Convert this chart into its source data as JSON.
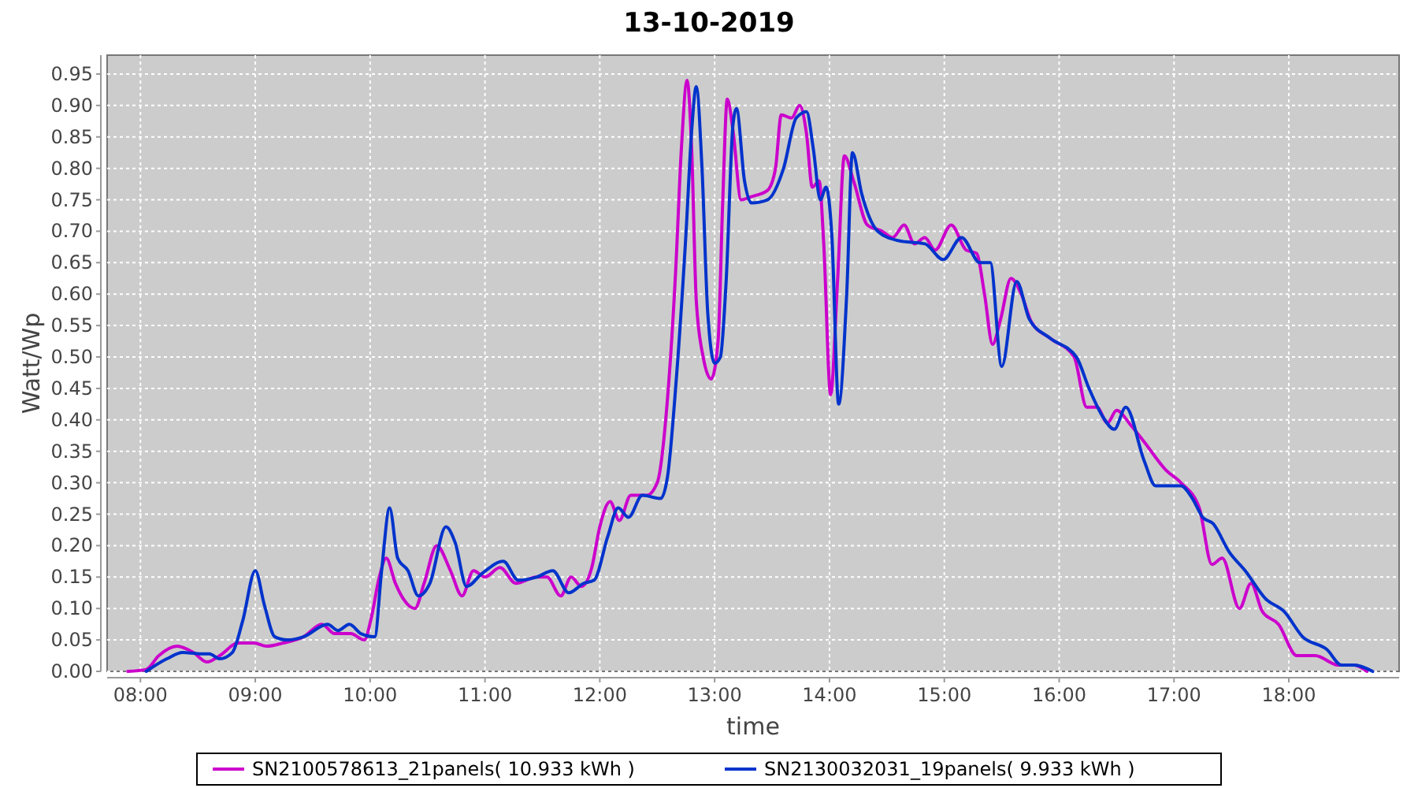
{
  "chart_data": {
    "type": "line",
    "title": "13-10-2019",
    "xlabel": "time",
    "ylabel": "Watt/Wp",
    "grid": true,
    "legend": "bottom",
    "line_style": "solid",
    "marker": "none",
    "xlim": [
      7.71,
      18.96
    ],
    "xticks": [
      {
        "value": 8,
        "label": "08:00"
      },
      {
        "value": 9,
        "label": "09:00"
      },
      {
        "value": 10,
        "label": "10:00"
      },
      {
        "value": 11,
        "label": "11:00"
      },
      {
        "value": 12,
        "label": "12:00"
      },
      {
        "value": 13,
        "label": "13:00"
      },
      {
        "value": 14,
        "label": "14:00"
      },
      {
        "value": 15,
        "label": "15:00"
      },
      {
        "value": 16,
        "label": "16:00"
      },
      {
        "value": 17,
        "label": "17:00"
      },
      {
        "value": 18,
        "label": "18:00"
      }
    ],
    "ylim": [
      0,
      0.98
    ],
    "yticks": [
      {
        "value": 0,
        "label": "0.00"
      },
      {
        "value": 0.05,
        "label": "0.05"
      },
      {
        "value": 0.1,
        "label": "0.10"
      },
      {
        "value": 0.15,
        "label": "0.15"
      },
      {
        "value": 0.2,
        "label": "0.20"
      },
      {
        "value": 0.25,
        "label": "0.25"
      },
      {
        "value": 0.3,
        "label": "0.30"
      },
      {
        "value": 0.35,
        "label": "0.35"
      },
      {
        "value": 0.4,
        "label": "0.40"
      },
      {
        "value": 0.45,
        "label": "0.45"
      },
      {
        "value": 0.5,
        "label": "0.50"
      },
      {
        "value": 0.55,
        "label": "0.55"
      },
      {
        "value": 0.6,
        "label": "0.60"
      },
      {
        "value": 0.65,
        "label": "0.65"
      },
      {
        "value": 0.7,
        "label": "0.70"
      },
      {
        "value": 0.75,
        "label": "0.75"
      },
      {
        "value": 0.8,
        "label": "0.80"
      },
      {
        "value": 0.85,
        "label": "0.85"
      },
      {
        "value": 0.9,
        "label": "0.90"
      },
      {
        "value": 0.95,
        "label": "0.95"
      }
    ],
    "series": [
      {
        "name": "SN2100578613_21panels( 10.933 kWh )",
        "color": "#cc00cc",
        "x": [
          7.89,
          8.05,
          8.16,
          8.32,
          8.46,
          8.58,
          8.69,
          8.85,
          8.99,
          9.1,
          9.24,
          9.42,
          9.58,
          9.69,
          9.83,
          9.95,
          10.01,
          10.08,
          10.14,
          10.22,
          10.29,
          10.39,
          10.47,
          10.58,
          10.7,
          10.8,
          10.9,
          11.0,
          11.13,
          11.27,
          11.45,
          11.54,
          11.66,
          11.75,
          11.84,
          11.93,
          12.0,
          12.09,
          12.17,
          12.27,
          12.41,
          12.5,
          12.59,
          12.66,
          12.71,
          12.76,
          12.8,
          12.84,
          12.9,
          12.97,
          13.03,
          13.07,
          13.11,
          13.16,
          13.23,
          13.32,
          13.46,
          13.53,
          13.58,
          13.67,
          13.74,
          13.8,
          13.85,
          13.91,
          13.95,
          14.01,
          14.07,
          14.13,
          14.21,
          14.33,
          14.46,
          14.55,
          14.65,
          14.74,
          14.83,
          14.92,
          15.06,
          15.19,
          15.28,
          15.35,
          15.42,
          15.49,
          15.58,
          15.67,
          15.76,
          15.92,
          16.13,
          16.24,
          16.33,
          16.42,
          16.5,
          16.63,
          16.74,
          16.93,
          17.06,
          17.22,
          17.33,
          17.42,
          17.57,
          17.67,
          17.77,
          17.91,
          18.07,
          18.23,
          18.43,
          18.57,
          18.68
        ],
        "values": [
          0,
          0.003,
          0.025,
          0.04,
          0.03,
          0.015,
          0.025,
          0.045,
          0.045,
          0.04,
          0.045,
          0.055,
          0.075,
          0.06,
          0.06,
          0.05,
          0.085,
          0.15,
          0.18,
          0.14,
          0.115,
          0.1,
          0.14,
          0.2,
          0.16,
          0.12,
          0.16,
          0.15,
          0.165,
          0.14,
          0.15,
          0.15,
          0.12,
          0.15,
          0.135,
          0.165,
          0.23,
          0.27,
          0.24,
          0.28,
          0.28,
          0.3,
          0.435,
          0.635,
          0.83,
          0.94,
          0.83,
          0.59,
          0.5,
          0.465,
          0.525,
          0.745,
          0.91,
          0.86,
          0.75,
          0.755,
          0.765,
          0.8,
          0.885,
          0.88,
          0.9,
          0.855,
          0.77,
          0.78,
          0.68,
          0.44,
          0.62,
          0.82,
          0.78,
          0.71,
          0.7,
          0.69,
          0.71,
          0.68,
          0.69,
          0.67,
          0.71,
          0.67,
          0.665,
          0.6,
          0.52,
          0.56,
          0.625,
          0.6,
          0.555,
          0.53,
          0.5,
          0.42,
          0.42,
          0.395,
          0.415,
          0.39,
          0.365,
          0.32,
          0.3,
          0.26,
          0.17,
          0.18,
          0.1,
          0.14,
          0.095,
          0.075,
          0.025,
          0.025,
          0.01,
          0.01,
          0
        ]
      },
      {
        "name": "SN2130032031_19panels( 9.933 kWh )",
        "color": "#0033cc",
        "x": [
          8.05,
          8.23,
          8.37,
          8.51,
          8.6,
          8.69,
          8.8,
          8.89,
          9.0,
          9.08,
          9.17,
          9.28,
          9.42,
          9.63,
          9.72,
          9.82,
          9.92,
          10.04,
          10.1,
          10.17,
          10.24,
          10.33,
          10.42,
          10.52,
          10.66,
          10.74,
          10.84,
          10.97,
          11.16,
          11.29,
          11.45,
          11.59,
          11.73,
          11.86,
          11.95,
          12.07,
          12.16,
          12.25,
          12.37,
          12.53,
          12.59,
          12.66,
          12.75,
          12.8,
          12.84,
          12.89,
          12.94,
          13.0,
          13.05,
          13.1,
          13.16,
          13.19,
          13.26,
          13.32,
          13.46,
          13.6,
          13.71,
          13.8,
          13.86,
          13.92,
          13.97,
          14.02,
          14.08,
          14.15,
          14.2,
          14.28,
          14.42,
          14.6,
          14.83,
          14.99,
          15.15,
          15.31,
          15.4,
          15.5,
          15.63,
          15.74,
          15.92,
          16.15,
          16.26,
          16.38,
          16.48,
          16.58,
          16.74,
          16.84,
          17.06,
          17.16,
          17.25,
          17.34,
          17.48,
          17.62,
          17.8,
          17.96,
          18.12,
          18.33,
          18.46,
          18.57,
          18.73
        ],
        "values": [
          0,
          0.02,
          0.03,
          0.028,
          0.028,
          0.02,
          0.03,
          0.08,
          0.16,
          0.105,
          0.055,
          0.05,
          0.055,
          0.075,
          0.065,
          0.075,
          0.06,
          0.055,
          0.16,
          0.26,
          0.18,
          0.16,
          0.12,
          0.14,
          0.23,
          0.205,
          0.135,
          0.155,
          0.175,
          0.145,
          0.15,
          0.16,
          0.125,
          0.14,
          0.145,
          0.215,
          0.26,
          0.245,
          0.28,
          0.275,
          0.31,
          0.45,
          0.695,
          0.86,
          0.93,
          0.8,
          0.57,
          0.49,
          0.5,
          0.62,
          0.87,
          0.895,
          0.78,
          0.745,
          0.75,
          0.8,
          0.88,
          0.89,
          0.83,
          0.75,
          0.77,
          0.695,
          0.425,
          0.6,
          0.825,
          0.76,
          0.7,
          0.685,
          0.68,
          0.655,
          0.69,
          0.65,
          0.65,
          0.485,
          0.62,
          0.56,
          0.53,
          0.5,
          0.45,
          0.405,
          0.385,
          0.42,
          0.335,
          0.295,
          0.295,
          0.275,
          0.245,
          0.235,
          0.19,
          0.16,
          0.115,
          0.095,
          0.055,
          0.035,
          0.01,
          0.01,
          0
        ]
      }
    ]
  }
}
